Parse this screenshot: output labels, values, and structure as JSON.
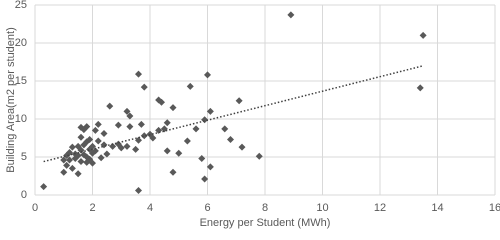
{
  "chart_data": {
    "type": "scatter",
    "x_label": "Energy per Student (MWh)",
    "y_label": "Building Area(m2 per student)",
    "xlim": [
      0,
      16
    ],
    "xticks": [
      0,
      2,
      4,
      6,
      8,
      10,
      12,
      14,
      16
    ],
    "ylim": [
      0,
      25
    ],
    "yticks": [
      0,
      5,
      10,
      15,
      20,
      25
    ],
    "grid": true,
    "color": "#595959",
    "x": [
      8.9,
      13.5,
      13.4,
      0.3,
      3.6,
      5.9,
      6.1,
      7.8,
      7.2,
      6.0,
      5.4,
      3.6,
      3.8,
      7.1,
      6.6,
      6.8,
      4.8,
      5.8,
      5.0,
      4.6,
      6.1,
      5.9,
      4.3,
      4.4,
      4.8,
      3.2,
      3.3,
      3.7,
      4.0,
      4.3,
      4.5,
      4.1,
      3.8,
      4.6,
      5.3,
      5.6,
      2.6,
      2.4,
      2.2,
      2.9,
      3.3,
      3.5,
      3.2,
      2.9,
      2.7,
      2.5,
      2.1,
      2.3,
      2.0,
      1.8,
      1.5,
      1.3,
      1.1,
      1.0,
      1.2,
      1.0,
      1.4,
      1.5,
      1.6,
      1.7,
      1.8,
      1.9,
      1.6,
      1.7,
      1.8,
      1.6,
      2.1,
      1.9,
      2.0,
      1.4,
      1.5,
      1.7,
      1.3,
      1.2,
      2.2,
      1.8,
      1.9,
      2.0,
      1.1,
      1.6,
      2.4,
      3.0,
      3.6
    ],
    "y": [
      23.7,
      21.0,
      14.1,
      1.1,
      0.6,
      2.1,
      3.7,
      5.1,
      6.3,
      15.8,
      14.3,
      15.9,
      14.2,
      12.4,
      8.7,
      7.3,
      3.0,
      4.8,
      5.5,
      5.8,
      11.0,
      9.9,
      12.5,
      12.2,
      11.5,
      11.0,
      10.4,
      9.3,
      8.0,
      8.5,
      8.7,
      7.5,
      7.8,
      9.5,
      7.1,
      8.7,
      11.7,
      8.1,
      9.3,
      9.2,
      9.0,
      6.0,
      6.4,
      6.7,
      6.4,
      5.4,
      5.8,
      4.9,
      4.2,
      4.3,
      2.8,
      3.5,
      3.9,
      3.0,
      4.6,
      4.6,
      5.4,
      6.4,
      5.9,
      6.6,
      7.0,
      6.0,
      7.6,
      8.6,
      9.0,
      8.9,
      8.5,
      7.3,
      6.4,
      4.8,
      5.2,
      5.3,
      6.3,
      5.6,
      7.1,
      5.0,
      4.7,
      5.5,
      5.2,
      4.4,
      6.6,
      6.2,
      7.2
    ],
    "trendline": {
      "x": [
        0.3,
        13.5
      ],
      "y": [
        4.4,
        17.0
      ],
      "color": "#404040"
    }
  }
}
